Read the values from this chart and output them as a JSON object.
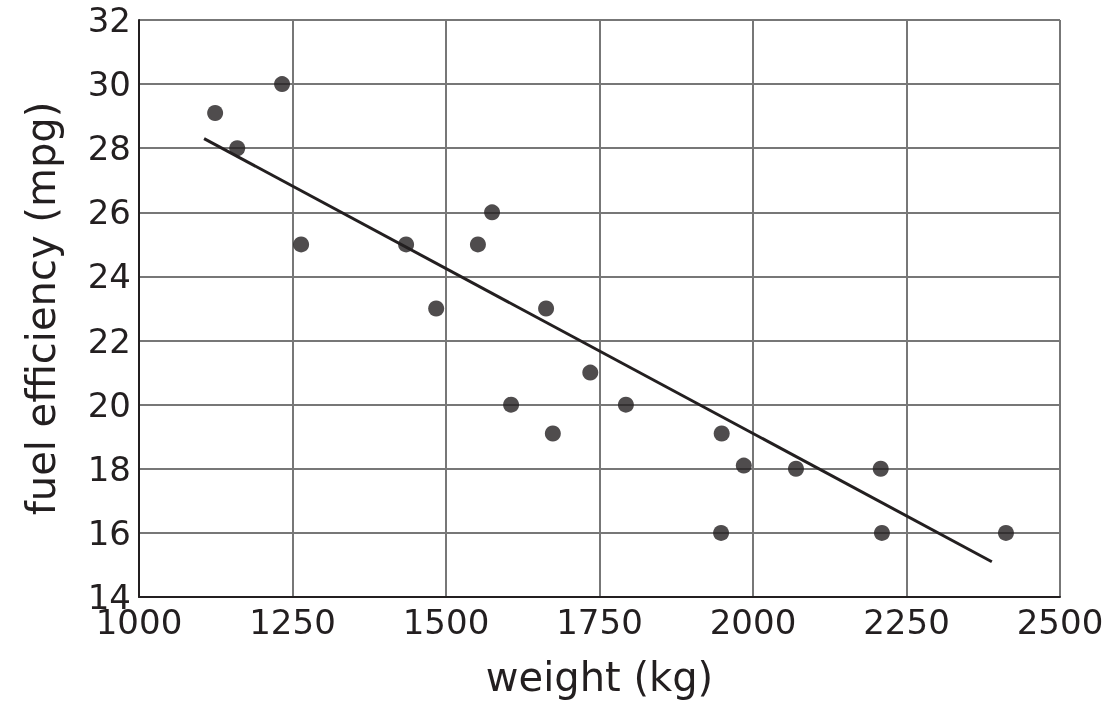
{
  "chart_data": {
    "type": "scatter",
    "xlabel": "weight (kg)",
    "ylabel": "fuel efficiency (mpg)",
    "xlim": [
      1000,
      2500
    ],
    "xticks": [
      1000,
      1250,
      1500,
      1750,
      2000,
      2250,
      2500
    ],
    "ylim": [
      14,
      32
    ],
    "yticks": [
      14,
      16,
      18,
      20,
      22,
      24,
      26,
      28,
      30,
      32
    ],
    "grid": true,
    "series": [
      {
        "marker": "circle",
        "color": "#231f20",
        "x": [
          1124,
          1160,
          1233,
          1264,
          1435,
          1484,
          1552,
          1575,
          1663,
          1606,
          1674,
          1735,
          1793,
          1949,
          1948,
          1985,
          2070,
          2208,
          2210,
          2412
        ],
        "values": [
          29.1,
          28,
          30,
          25,
          25,
          23,
          25,
          26,
          23,
          20,
          19.1,
          21,
          20,
          19.1,
          16,
          18.1,
          18,
          18,
          16,
          16
        ]
      },
      {
        "type": "line",
        "marker": "none",
        "color": "#231f20",
        "x": [
          1106,
          2389
        ],
        "values": [
          28.3,
          15.1
        ]
      }
    ]
  }
}
